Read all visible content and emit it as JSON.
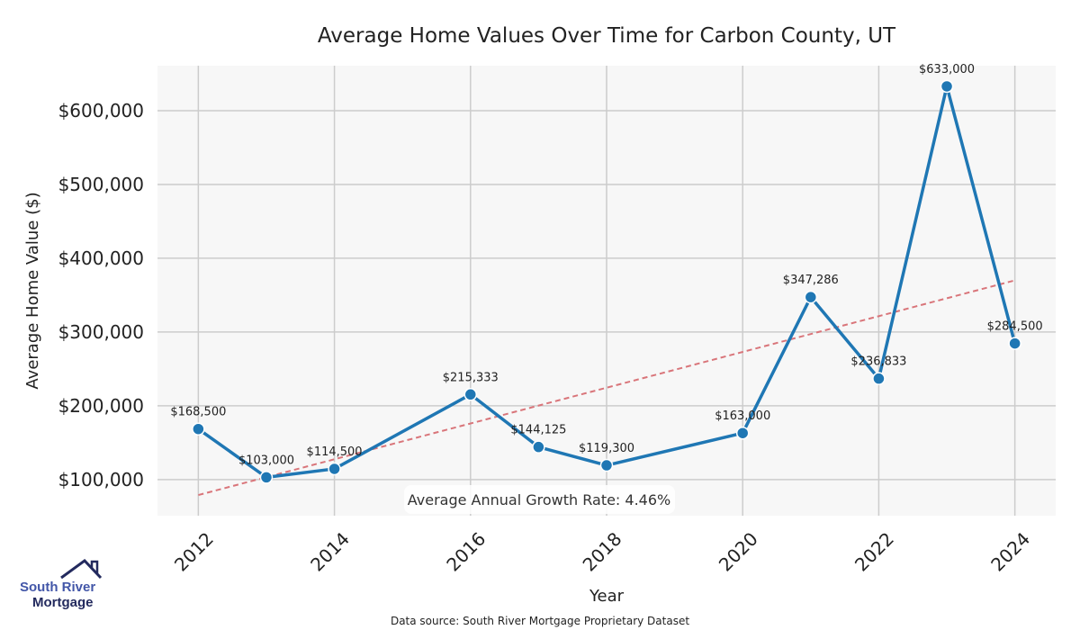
{
  "chart_data": {
    "type": "line",
    "title": "Average Home Values Over Time for Carbon County, UT",
    "xlabel": "Year",
    "ylabel": "Average Home Value ($)",
    "x": [
      2012,
      2013,
      2014,
      2016,
      2017,
      2018,
      2020,
      2021,
      2022,
      2023,
      2024
    ],
    "values": [
      168500,
      103000,
      114500,
      215333,
      144125,
      119300,
      163000,
      347286,
      236833,
      633000,
      284500
    ],
    "data_labels": [
      "$168,500",
      "$103,000",
      "$114,500",
      "$215,333",
      "$144,125",
      "$119,300",
      "$163,000",
      "$347,286",
      "$236,833",
      "$633,000",
      "$284,500"
    ],
    "xticks": [
      "2012",
      "2014",
      "2016",
      "2018",
      "2020",
      "2022",
      "2024"
    ],
    "yticks": [
      {
        "v": 100000,
        "label": "$100,000"
      },
      {
        "v": 200000,
        "label": "$200,000"
      },
      {
        "v": 300000,
        "label": "$300,000"
      },
      {
        "v": 400000,
        "label": "$400,000"
      },
      {
        "v": 500000,
        "label": "$500,000"
      },
      {
        "v": 600000,
        "label": "$600,000"
      }
    ],
    "xlim": [
      2011.4,
      2024.6
    ],
    "ylim": [
      51000,
      661000
    ],
    "trend": {
      "x": [
        2012,
        2024
      ],
      "y": [
        79000,
        370000
      ]
    },
    "annotation": "Average Annual Growth Rate: 4.46%",
    "grid": true,
    "colors": {
      "line": "#1f77b4",
      "trend": "#d9757a",
      "bg": "#f7f7f7",
      "grid": "#cccccc"
    }
  },
  "footer": {
    "source": "Data source: South River Mortgage Proprietary Dataset"
  },
  "logo": {
    "line1": "South River",
    "line2": "Mortgage"
  }
}
